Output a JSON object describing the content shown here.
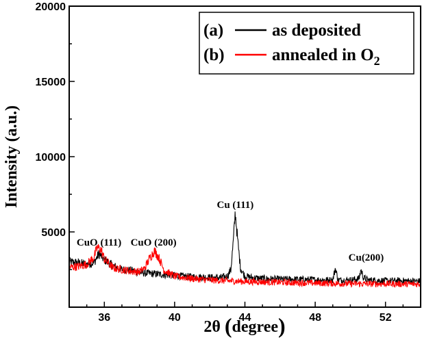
{
  "chart_data": {
    "type": "line",
    "title": "",
    "xlabel": "2θ (degree)",
    "xlabel_main": "2θ",
    "xlabel_unit": "degree",
    "ylabel": "Intensity (a.u.)",
    "xlim": [
      34,
      54
    ],
    "ylim": [
      0,
      20000
    ],
    "xticks": [
      36,
      40,
      44,
      48,
      52
    ],
    "yticks": [
      5000,
      10000,
      15000,
      20000
    ],
    "grid": false,
    "legend_position": "top-right",
    "series": [
      {
        "name": "as deposited",
        "label_prefix": "(a)",
        "color": "#000000",
        "points": [
          [
            34,
            3000
          ],
          [
            34.5,
            2950
          ],
          [
            35,
            2850
          ],
          [
            35.4,
            2950
          ],
          [
            35.7,
            3550
          ],
          [
            36.0,
            3150
          ],
          [
            36.5,
            2750
          ],
          [
            37,
            2500
          ],
          [
            37.5,
            2450
          ],
          [
            38,
            2300
          ],
          [
            38.5,
            2250
          ],
          [
            39,
            2200
          ],
          [
            39.5,
            2150
          ],
          [
            40,
            2100
          ],
          [
            40.5,
            2050
          ],
          [
            41,
            2020
          ],
          [
            41.5,
            2000
          ],
          [
            42,
            1980
          ],
          [
            42.5,
            1950
          ],
          [
            43.0,
            2050
          ],
          [
            43.2,
            2500
          ],
          [
            43.35,
            4500
          ],
          [
            43.45,
            6300
          ],
          [
            43.6,
            4300
          ],
          [
            43.75,
            2600
          ],
          [
            44.0,
            2050
          ],
          [
            44.5,
            1950
          ],
          [
            45,
            1900
          ],
          [
            46,
            1850
          ],
          [
            47,
            1850
          ],
          [
            48,
            1820
          ],
          [
            49,
            1800
          ],
          [
            49.15,
            2600
          ],
          [
            49.3,
            1800
          ],
          [
            50,
            1800
          ],
          [
            50.5,
            1900
          ],
          [
            50.6,
            2500
          ],
          [
            50.75,
            1950
          ],
          [
            51,
            1800
          ],
          [
            52,
            1750
          ],
          [
            53,
            1750
          ],
          [
            54,
            1720
          ]
        ]
      },
      {
        "name": "annealed in O",
        "name_subscript": "2",
        "label_prefix": "(b)",
        "color": "#ff0000",
        "points": [
          [
            34,
            2650
          ],
          [
            34.5,
            2700
          ],
          [
            35,
            2850
          ],
          [
            35.4,
            3300
          ],
          [
            35.6,
            3950
          ],
          [
            35.8,
            3850
          ],
          [
            36.0,
            3200
          ],
          [
            36.5,
            2600
          ],
          [
            37,
            2500
          ],
          [
            37.5,
            2400
          ],
          [
            38,
            2350
          ],
          [
            38.3,
            2600
          ],
          [
            38.6,
            3300
          ],
          [
            38.85,
            3750
          ],
          [
            39.1,
            3300
          ],
          [
            39.4,
            2450
          ],
          [
            40,
            2050
          ],
          [
            41,
            1900
          ],
          [
            42,
            1800
          ],
          [
            43,
            1750
          ],
          [
            44,
            1700
          ],
          [
            45,
            1680
          ],
          [
            46,
            1650
          ],
          [
            47,
            1620
          ],
          [
            48,
            1600
          ],
          [
            49,
            1580
          ],
          [
            50,
            1560
          ],
          [
            51,
            1550
          ],
          [
            52,
            1550
          ],
          [
            53,
            1540
          ],
          [
            54,
            1530
          ]
        ]
      }
    ],
    "annotations": [
      {
        "text": "CuO (111)",
        "x": 35.7,
        "y": 4100
      },
      {
        "text": "CuO (200)",
        "x": 38.8,
        "y": 4100
      },
      {
        "text": "Cu (111)",
        "x": 43.45,
        "y": 6600
      },
      {
        "text": "Cu(200)",
        "x": 50.9,
        "y": 3100
      }
    ]
  }
}
